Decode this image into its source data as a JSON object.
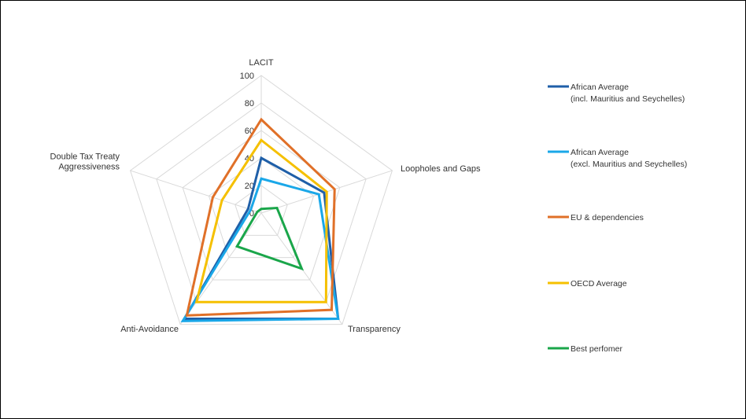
{
  "chart_data": {
    "type": "radar",
    "axes": [
      "LACIT",
      "Loopholes and Gaps",
      "Transparency",
      "Anti-Avoidance",
      "Double Tax Treaty Aggressiveness"
    ],
    "axis_label_lines": [
      [
        "LACIT"
      ],
      [
        "Loopholes and Gaps"
      ],
      [
        "Transparency"
      ],
      [
        "Anti-Avoidance"
      ],
      [
        "Double Tax Treaty",
        "Aggressiveness"
      ]
    ],
    "r_ticks": [
      "0",
      "20",
      "40",
      "60",
      "80",
      "100"
    ],
    "rlim": [
      0,
      100
    ],
    "grid": true,
    "legend_position": "right",
    "series": [
      {
        "name": "African Average (incl. Mauritius and Seychelles)",
        "legend_lines": [
          "African Average",
          "(incl. Mauritius and Seychelles)"
        ],
        "color": "#1f5fa8",
        "values": [
          40,
          48,
          95,
          95,
          10
        ]
      },
      {
        "name": "African Average (excl. Mauritius and Seychelles)",
        "legend_lines": [
          "African Average",
          "(excl. Mauritius and Seychelles)"
        ],
        "color": "#1aa7e8",
        "values": [
          25,
          44,
          95,
          97,
          8
        ]
      },
      {
        "name": "EU & dependencies",
        "legend_lines": [
          "EU & dependencies"
        ],
        "color": "#e07028",
        "values": [
          68,
          56,
          87,
          92,
          37
        ]
      },
      {
        "name": "OECD Average",
        "legend_lines": [
          "OECD Average"
        ],
        "color": "#f5c000",
        "values": [
          53,
          50,
          80,
          80,
          30
        ]
      },
      {
        "name": "Best perfomer",
        "legend_lines": [
          "Best perfomer"
        ],
        "color": "#1aa64a",
        "values": [
          3,
          12,
          50,
          30,
          3
        ]
      }
    ]
  }
}
